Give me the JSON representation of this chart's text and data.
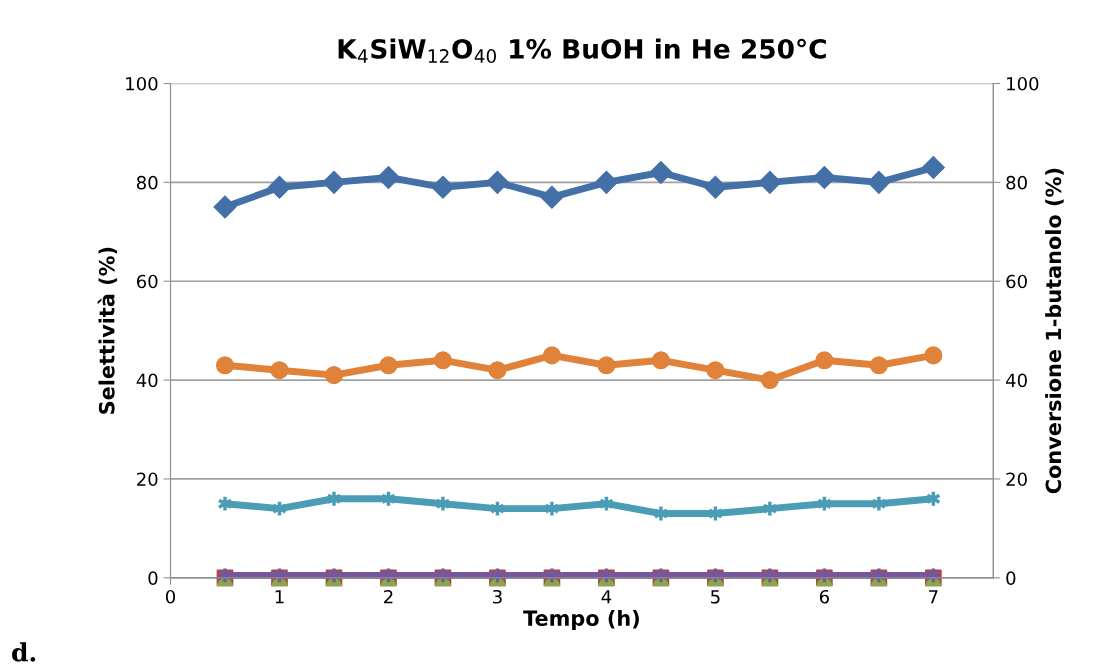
{
  "chart_data": {
    "type": "line",
    "title": "K$_{4}$SiW$_{12}$O$_{40}$ 1% BuOH in He 250°C",
    "xlabel": "Tempo (h)",
    "ylabel": "Selettività (%)",
    "y2label": "Conversione 1-butanolo (%)",
    "x": [
      0.5,
      1,
      1.5,
      2,
      2.5,
      3,
      3.5,
      4,
      4.5,
      5,
      5.5,
      6,
      6.5,
      7
    ],
    "series": [
      {
        "color": "#4470a8",
        "marker": "diamond",
        "values": [
          75,
          79,
          80,
          81,
          79,
          80,
          77,
          80,
          82,
          79,
          80,
          81,
          80,
          83
        ]
      },
      {
        "color": "#e0823a",
        "marker": "circle",
        "values": [
          43,
          42,
          41,
          43,
          44,
          42,
          45,
          43,
          44,
          42,
          40,
          44,
          43,
          45
        ]
      },
      {
        "color": "#4a9db5",
        "marker": "cross",
        "values": [
          15,
          14,
          16,
          16,
          15,
          14,
          14,
          15,
          13,
          13,
          14,
          15,
          15,
          16
        ]
      },
      {
        "type": "scatter",
        "color": "#b04545",
        "marker": "square",
        "values": [
          0,
          0,
          0,
          0,
          0,
          0,
          0,
          0,
          0,
          0,
          0,
          0,
          0,
          0
        ]
      },
      {
        "type": "scatter",
        "color": "#8aa84a",
        "marker": "triangle",
        "values": [
          0,
          0,
          0,
          0,
          0,
          0,
          0,
          0,
          0,
          0,
          0,
          0,
          0,
          0
        ]
      },
      {
        "color": "#76589a",
        "marker": "cross",
        "values": [
          0.5,
          0.5,
          0.5,
          0.5,
          0.5,
          0.5,
          0.5,
          0.5,
          0.5,
          0.5,
          0.5,
          0.5,
          0.5,
          0.5
        ]
      }
    ],
    "xlim": [
      0,
      7.55
    ],
    "xticks": [
      0,
      1,
      2,
      3,
      4,
      5,
      6,
      7
    ],
    "ylim": [
      0,
      100
    ],
    "yticks": [
      0,
      20,
      40,
      60,
      80,
      100
    ],
    "y2lim": [
      0,
      100
    ],
    "y2ticks": [
      0,
      20,
      40,
      60,
      80,
      100
    ],
    "grid": "y",
    "legend": false,
    "annotations": [
      "d."
    ]
  }
}
